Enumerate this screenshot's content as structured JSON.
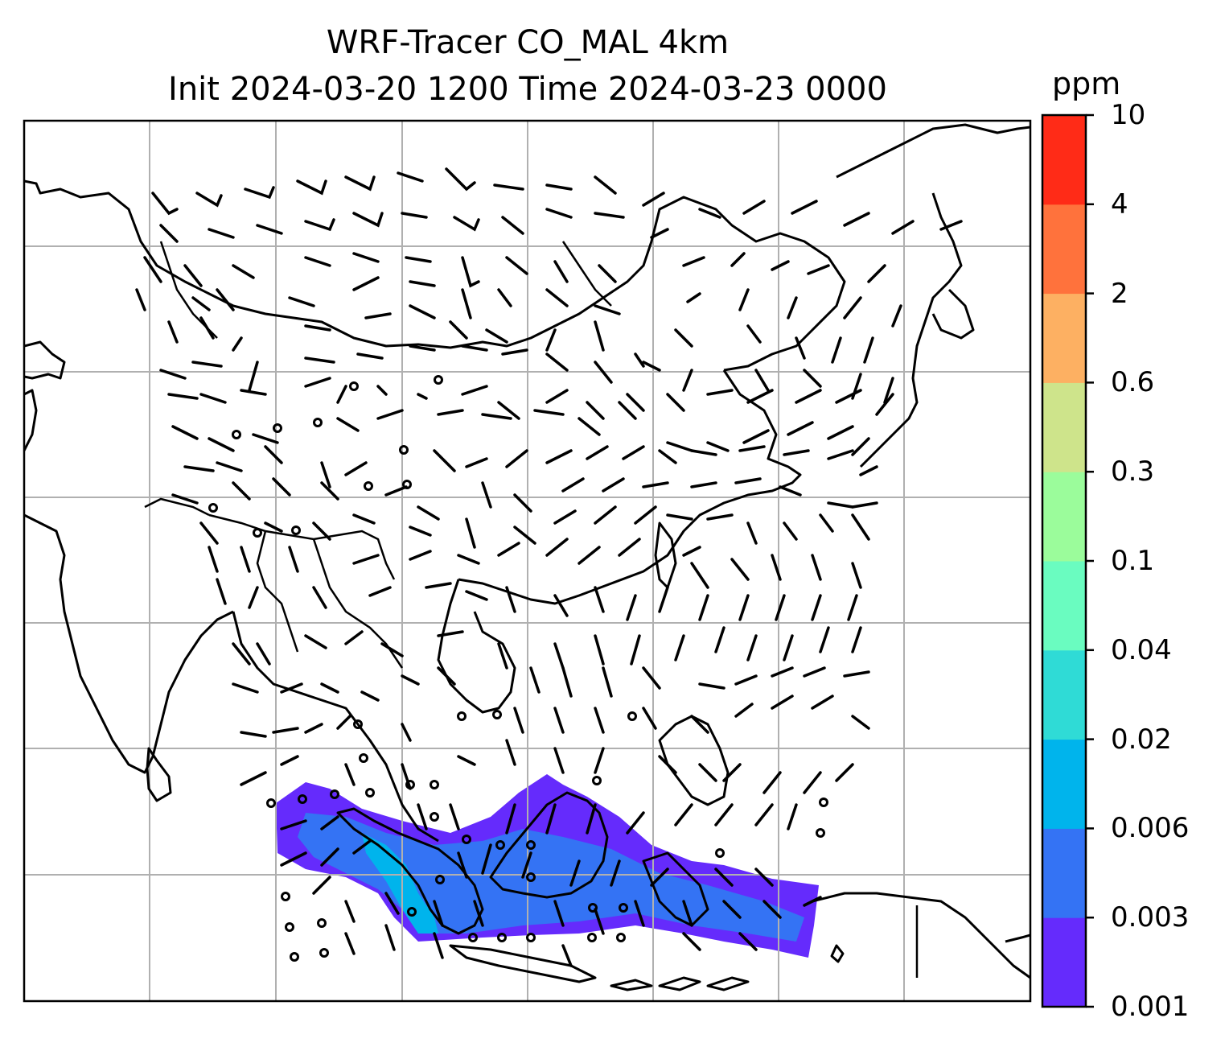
{
  "title_line1": "WRF-Tracer CO_MAL 4km",
  "title_line2": "Init 2024-03-20 1200 Time 2024-03-23 0000",
  "colorbar": {
    "unit": "ppm",
    "levels": [
      "0.001",
      "0.003",
      "0.006",
      "0.02",
      "0.04",
      "0.1",
      "0.3",
      "0.6",
      "2",
      "4",
      "10"
    ],
    "colors": [
      "#652bfc",
      "#3473f4",
      "#00b4ec",
      "#2fdbd6",
      "#6afcc0",
      "#9bfc9b",
      "#cee48b",
      "#fdb062",
      "#ff723c",
      "#ff2b17"
    ]
  },
  "map": {
    "gridlines": true,
    "plume_region": "Malaysia / Sumatra / Borneo",
    "plume_colors": [
      "#652bfc",
      "#3473f4",
      "#00b4ec"
    ],
    "features": [
      "coastlines",
      "country-borders",
      "wind-barbs"
    ]
  }
}
